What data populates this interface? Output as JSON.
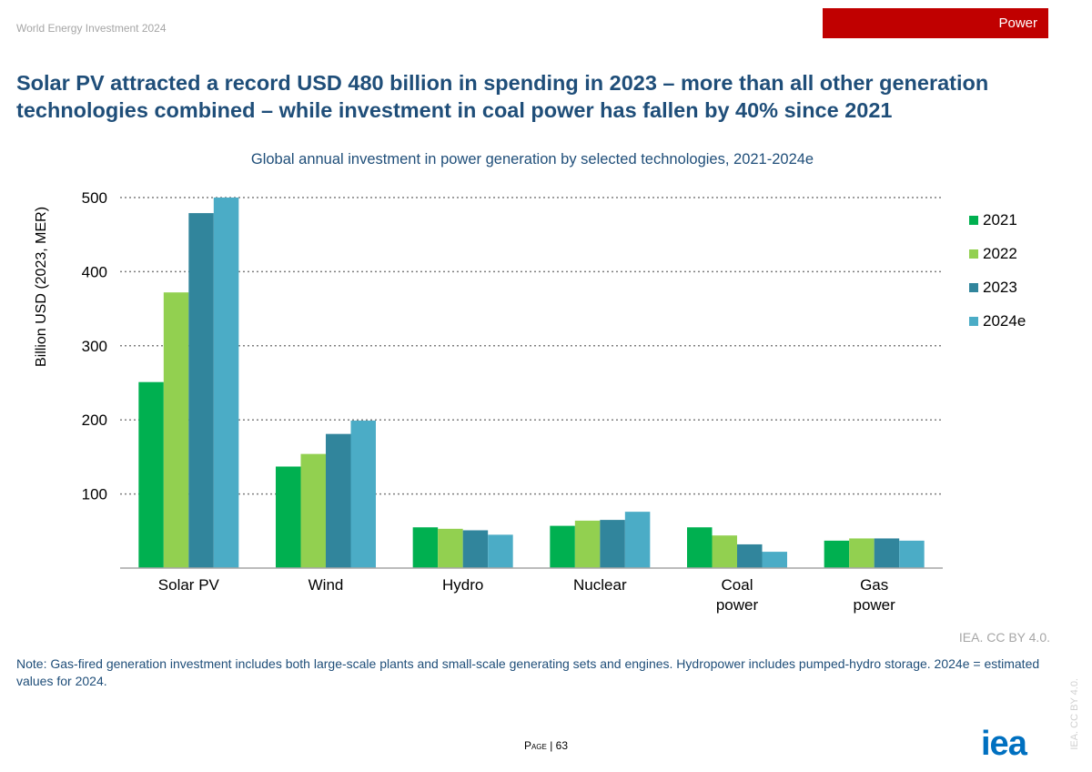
{
  "header": {
    "report": "World Energy Investment 2024",
    "section": "Power"
  },
  "headline": "Solar PV attracted a record USD 480 billion in spending in 2023 – more than all other generation technologies combined – while investment in coal power has fallen by 40% since 2021",
  "chart_data": {
    "type": "bar",
    "title": "Global annual investment in power generation by selected technologies, 2021-2024e",
    "ylabel": "Billion USD (2023, MER)",
    "xlabel": "",
    "categories": [
      [
        "Solar PV"
      ],
      [
        "Wind"
      ],
      [
        "Hydro"
      ],
      [
        "Nuclear"
      ],
      [
        "Coal",
        "power"
      ],
      [
        "Gas",
        "power"
      ]
    ],
    "ylim": [
      0,
      500
    ],
    "yticks": [
      100,
      200,
      300,
      400,
      500
    ],
    "grid": true,
    "legend_position": "right",
    "series": [
      {
        "name": "2021",
        "color": "#00b050",
        "values": [
          251,
          137,
          55,
          57,
          55,
          37
        ]
      },
      {
        "name": "2022",
        "color": "#92d050",
        "values": [
          372,
          154,
          53,
          64,
          44,
          40
        ]
      },
      {
        "name": "2023",
        "color": "#31859c",
        "values": [
          479,
          181,
          51,
          65,
          32,
          40
        ]
      },
      {
        "name": "2024e",
        "color": "#4bacc6",
        "values": [
          500,
          199,
          45,
          76,
          22,
          37
        ]
      }
    ]
  },
  "source": "IEA. CC BY 4.0.",
  "note": "Note: Gas-fired generation investment includes both large-scale plants and small-scale generating sets and engines. Hydropower includes pumped-hydro storage. 2024e = estimated values for 2024.",
  "footer": {
    "page_prefix": "Page",
    "page_number": "| 63",
    "vertical_credit": "IEA. CC BY 4.0.",
    "logo": "iea"
  }
}
